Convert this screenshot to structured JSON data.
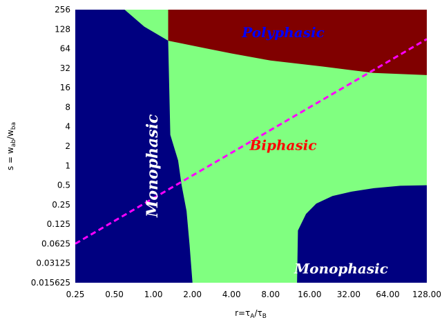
{
  "chart_data": {
    "type": "heatmap",
    "title": "",
    "xlabel": {
      "base": "r=τ",
      "sub1": "A",
      "mid": "/τ",
      "sub2": "B"
    },
    "ylabel": {
      "base": "s = w",
      "sub1": "ab",
      "mid": "/w",
      "sub2": "ba"
    },
    "x_scale": "log2",
    "y_scale": "log2",
    "xlim": [
      0.25,
      128
    ],
    "ylim": [
      0.015625,
      256
    ],
    "x_ticks": [
      "0.25",
      "0.50",
      "1.00",
      "2.00",
      "4.00",
      "8.00",
      "16.00",
      "32.00",
      "64.00",
      "128.00"
    ],
    "y_ticks": [
      "256",
      "128",
      "64",
      "32",
      "16",
      "8",
      "4",
      "2",
      "1",
      "0.5",
      "0.25",
      "0.125",
      "0.0625",
      "0.03125",
      "0.015625"
    ],
    "regions": [
      {
        "name": "Monophasic",
        "color": "#000080",
        "label": "Monophasic",
        "label_color": "#ffffff",
        "label_at": [
          1.0,
          1.0
        ],
        "label_rotated": true
      },
      {
        "name": "Biphasic",
        "color": "#80ff80",
        "label": "Biphasic",
        "label_color": "#ff0000",
        "label_at": [
          10.0,
          2.0
        ],
        "label_rotated": false
      },
      {
        "name": "Polyphasic",
        "color": "#800000",
        "label": "Polyphasic",
        "label_color": "#0000ff",
        "label_at": [
          10.0,
          110.0
        ],
        "label_rotated": false
      },
      {
        "name": "Monophasic",
        "color": "#000080",
        "label": "Monophasic",
        "label_color": "#ffffff",
        "label_at": [
          28.0,
          0.025
        ],
        "label_rotated": false
      }
    ],
    "boundaries": {
      "left_monophasic": [
        [
          0.25,
          256
        ],
        [
          0.6,
          256
        ],
        [
          0.85,
          140
        ],
        [
          1.3,
          85
        ],
        [
          1.35,
          3
        ],
        [
          1.55,
          1.2
        ],
        [
          1.65,
          0.5
        ],
        [
          1.8,
          0.2
        ],
        [
          1.9,
          0.06
        ],
        [
          2.0,
          0.015625
        ]
      ],
      "polyphasic": [
        [
          1.3,
          256
        ],
        [
          128,
          256
        ],
        [
          128,
          25
        ],
        [
          50,
          27
        ],
        [
          20,
          34
        ],
        [
          8,
          42
        ],
        [
          4,
          54
        ],
        [
          2.5,
          65
        ],
        [
          1.3,
          85
        ]
      ],
      "right_monophasic": [
        [
          12.8,
          0.015625
        ],
        [
          13,
          0.1
        ],
        [
          15,
          0.18
        ],
        [
          18,
          0.26
        ],
        [
          24,
          0.34
        ],
        [
          34,
          0.4
        ],
        [
          50,
          0.45
        ],
        [
          80,
          0.49
        ],
        [
          128,
          0.5
        ],
        [
          128,
          0.015625
        ]
      ]
    },
    "reference_line": {
      "style": "dashed",
      "color": "#ff00ff",
      "x": [
        0.25,
        128
      ],
      "y": [
        0.0625,
        90
      ]
    },
    "grid": false,
    "legend": "none"
  }
}
